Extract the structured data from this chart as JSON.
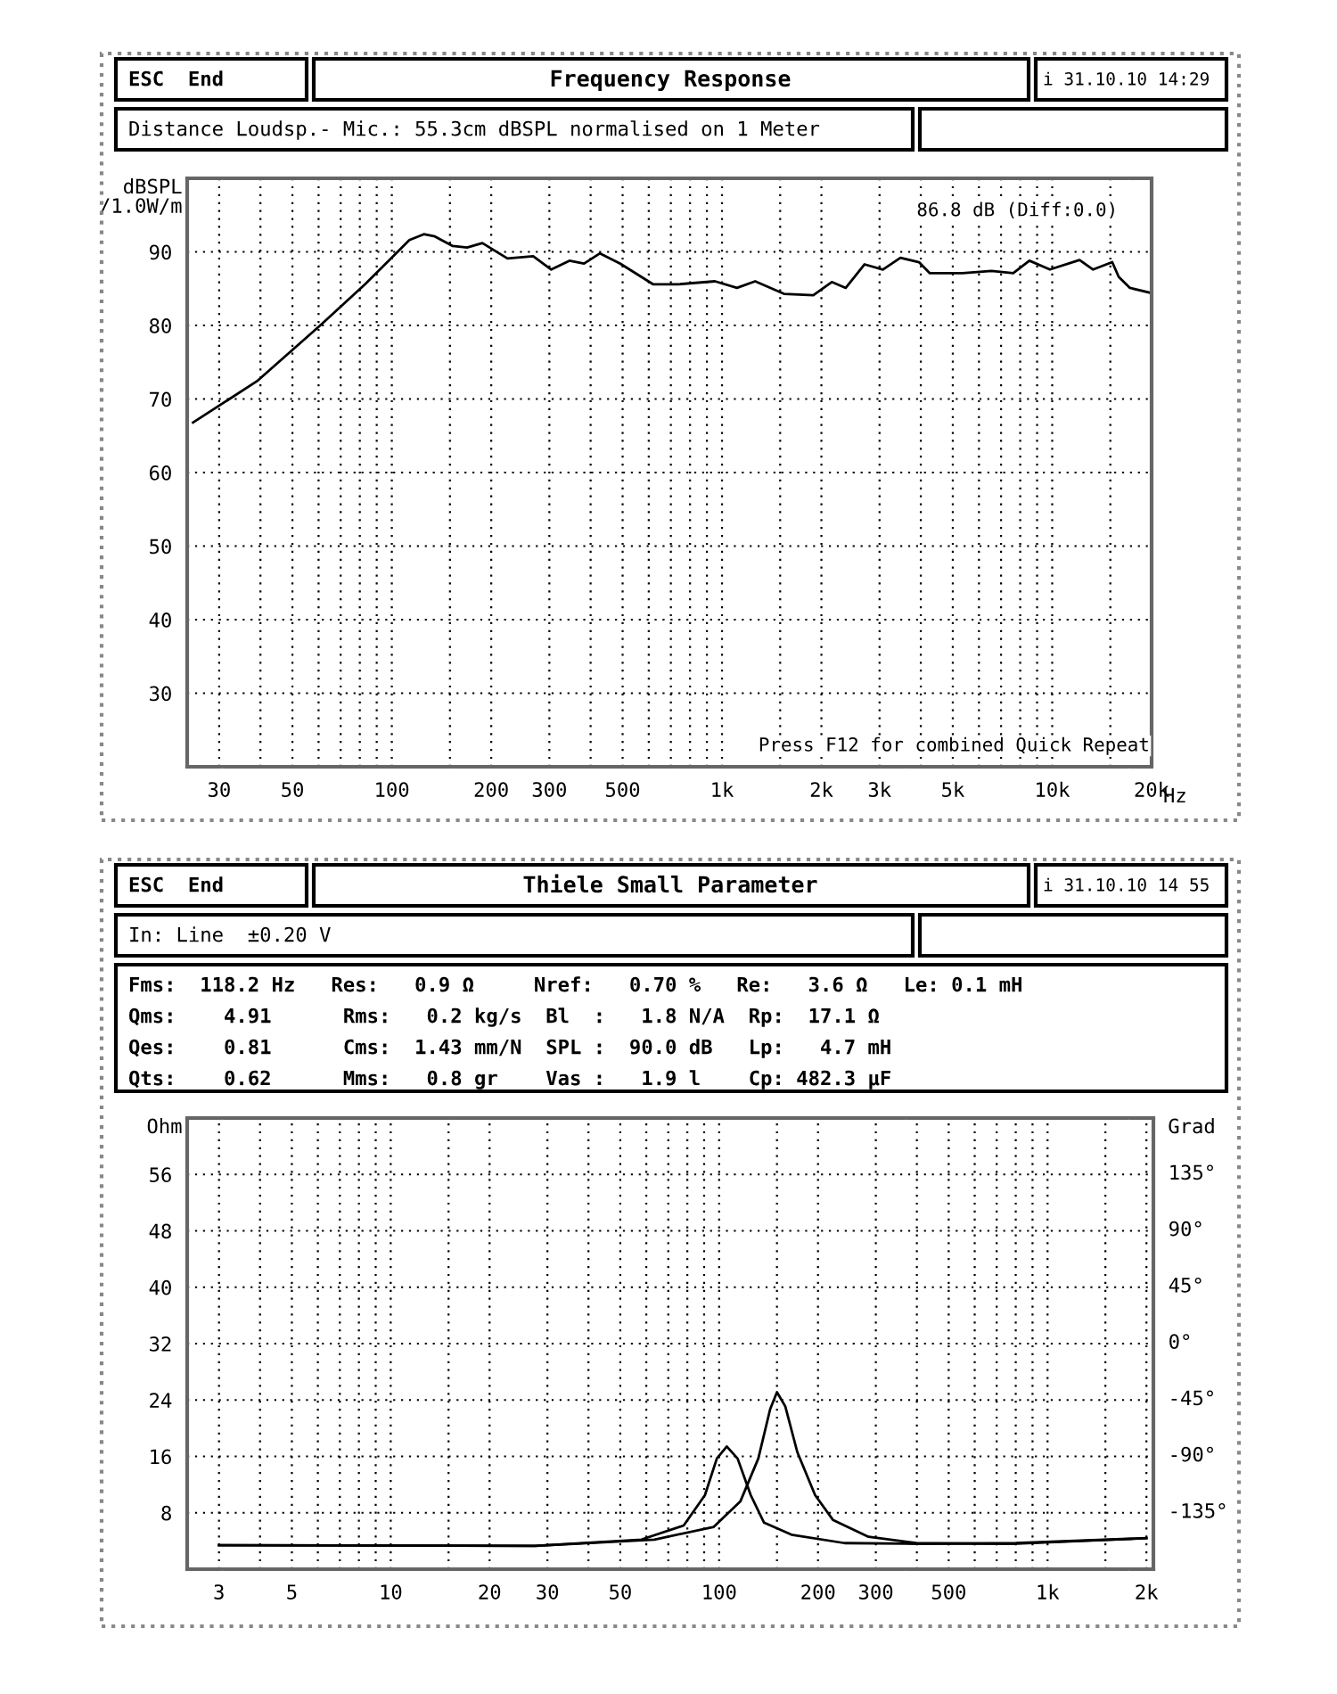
{
  "chart_data": [
    {
      "type": "line",
      "title": "Frequency Response",
      "ylabel": "dBSPL\n/1.0W/m",
      "annotations": [
        "ESC  End",
        "i 31.10.10 14:29",
        "Distance Loudsp.- Mic.: 55.3cm dBSPL normalised on 1 Meter",
        "86.8 dB (Diff:0.0)",
        "Press F12 for combined Quick Repeat"
      ],
      "series": [
        {
          "color": "#000000",
          "x": [
            25,
            39,
            61,
            83,
            102,
            113,
            125,
            135,
            153,
            169,
            188,
            224,
            268,
            304,
            345,
            382,
            427,
            492,
            618,
            739,
            952,
            1110,
            1260,
            1540,
            1890,
            2150,
            2370,
            2700,
            3070,
            3470,
            3950,
            4260,
            5350,
            6550,
            7620,
            8530,
            9840,
            12100,
            13300,
            15200,
            15900,
            17200,
            20000
          ],
          "values": [
            66.8,
            72.4,
            80.1,
            85.6,
            89.6,
            91.6,
            92.4,
            92.1,
            90.8,
            90.6,
            91.2,
            89.1,
            89.4,
            87.6,
            88.8,
            88.4,
            89.8,
            88.4,
            85.6,
            85.6,
            86.0,
            85.1,
            86.0,
            84.3,
            84.1,
            85.9,
            85.1,
            88.3,
            87.6,
            89.2,
            88.6,
            87.1,
            87.1,
            87.4,
            87.1,
            88.8,
            87.6,
            88.9,
            87.6,
            88.6,
            86.6,
            85.1,
            84.4
          ]
        }
      ],
      "log": "x",
      "xlim": [
        24,
        20000
      ],
      "ylim": [
        20,
        100
      ],
      "xticks": [
        30,
        {
          "value": 40,
          "label": null
        },
        50,
        {
          "value": 60,
          "label": null
        },
        {
          "value": 70,
          "label": null
        },
        {
          "value": 80,
          "label": null
        },
        {
          "value": 90,
          "label": null
        },
        100,
        {
          "value": 150,
          "label": null
        },
        200,
        300,
        {
          "value": 400,
          "label": null
        },
        500,
        {
          "value": 600,
          "label": null
        },
        {
          "value": 700,
          "label": null
        },
        {
          "value": 800,
          "label": null
        },
        {
          "value": 900,
          "label": null
        },
        {
          "value": 1000,
          "label": "1k"
        },
        {
          "value": 1500,
          "label": null
        },
        {
          "value": 2000,
          "label": "2k"
        },
        {
          "value": 3000,
          "label": "3k"
        },
        {
          "value": 4000,
          "label": null
        },
        {
          "value": 5000,
          "label": "5k"
        },
        {
          "value": 6000,
          "label": null
        },
        {
          "value": 7000,
          "label": null
        },
        {
          "value": 8000,
          "label": null
        },
        {
          "value": 9000,
          "label": null
        },
        {
          "value": 10000,
          "label": "10k"
        },
        {
          "value": 15000,
          "label": null
        },
        {
          "value": 20000,
          "label": "20k"
        }
      ],
      "xlabel": "Hz",
      "yticks": [
        30,
        40,
        50,
        60,
        70,
        80,
        90
      ],
      "grid": true,
      "line_style": "solid"
    },
    {
      "type": "line",
      "title": "Thiele Small Parameter",
      "ylabel": "Ohm",
      "y2label": "Grad",
      "annotations": [
        "ESC  End",
        "i 31.10.10 14 55",
        "In: Line  ±0.20 V",
        "Fms:  118.2 Hz   Res:   0.9 Ω     Nref:   0.70 %   Re:   3.6 Ω   Le: 0.1 mH",
        "Qms:    4.91      Rms:   0.2 kg/s  Bl  :   1.8 N/A  Rp:  17.1 Ω",
        "Qes:    0.81      Cms:  1.43 mm/N  SPL :  90.0 dB   Lp:   4.7 mH",
        "Qts:    0.62      Mms:   0.8 gr    Vas :   1.9 l    Cp: 482.3 µF"
      ],
      "series": [
        {
          "color": "#000000",
          "x": [
            3,
            27.5,
            58,
            78,
            90.5,
            98.4,
            105.5,
            113.8,
            124.8,
            137,
            166,
            241,
            400,
            800,
            2000
          ],
          "values": [
            3.4,
            3.3,
            4.2,
            6.2,
            10.5,
            15.7,
            17.4,
            15.7,
            10.5,
            6.6,
            4.9,
            3.7,
            3.6,
            3.7,
            4.4
          ]
        },
        {
          "color": "#000000",
          "x": [
            3,
            27.5,
            63.5,
            96.3,
            116,
            131.6,
            143,
            150,
            159,
            173,
            196,
            222,
            285,
            398,
            775,
            2000
          ],
          "values": [
            3.4,
            3.3,
            4.2,
            6.0,
            9.6,
            15.7,
            22.7,
            25.1,
            23.1,
            16.6,
            10.5,
            7.0,
            4.6,
            3.7,
            3.6,
            4.4
          ]
        }
      ],
      "log": "x",
      "xlim": [
        2.4,
        2100
      ],
      "ylim": [
        0,
        64
      ],
      "y2lim": [
        -182,
        178
      ],
      "xticks": [
        3,
        {
          "value": 4,
          "label": null
        },
        5,
        {
          "value": 6,
          "label": null
        },
        {
          "value": 7,
          "label": null
        },
        {
          "value": 8,
          "label": null
        },
        {
          "value": 9,
          "label": null
        },
        10,
        {
          "value": 15,
          "label": null
        },
        20,
        30,
        {
          "value": 40,
          "label": null
        },
        50,
        {
          "value": 60,
          "label": null
        },
        {
          "value": 70,
          "label": null
        },
        {
          "value": 80,
          "label": null
        },
        {
          "value": 90,
          "label": null
        },
        100,
        {
          "value": 150,
          "label": null
        },
        200,
        300,
        {
          "value": 400,
          "label": null
        },
        500,
        {
          "value": 600,
          "label": null
        },
        {
          "value": 700,
          "label": null
        },
        {
          "value": 800,
          "label": null
        },
        {
          "value": 900,
          "label": null
        },
        {
          "value": 1000,
          "label": "1k"
        },
        {
          "value": 1500,
          "label": null
        },
        {
          "value": 2000,
          "label": "2k"
        }
      ],
      "yticks": [
        8,
        16,
        24,
        32,
        40,
        48,
        56
      ],
      "y2ticks": [
        {
          "value": -135,
          "label": "-135°"
        },
        {
          "value": -90,
          "label": "-90°"
        },
        {
          "value": -45,
          "label": "-45°"
        },
        {
          "value": 0,
          "label": "0°"
        },
        {
          "value": 45,
          "label": "45°"
        },
        {
          "value": 90,
          "label": "90°"
        },
        {
          "value": 135,
          "label": "135°"
        }
      ],
      "grid": true,
      "line_style": "solid"
    }
  ]
}
